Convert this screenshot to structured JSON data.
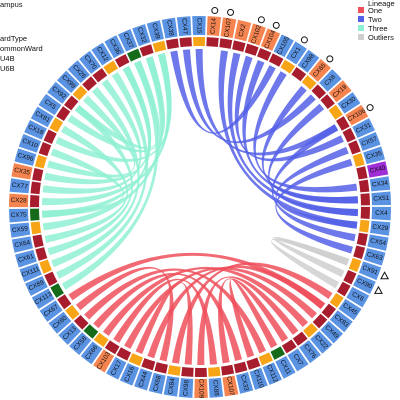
{
  "legend_left": {
    "lines": [
      "ampus",
      "ardType",
      "ommonWard",
      "U4B",
      "U6B"
    ]
  },
  "legend_right": {
    "title": "Lineage",
    "items": [
      {
        "label": "One",
        "color": "#ee4f5b"
      },
      {
        "label": "Two",
        "color": "#5560e8"
      },
      {
        "label": "Three",
        "color": "#8ff0d4"
      },
      {
        "label": "Outliers",
        "color": "#cfcfcf"
      }
    ]
  },
  "colors": {
    "label_blue": "#5b93e3",
    "label_orange": "#f58450",
    "label_purple": "#a02ed6",
    "ward_red": "#a71d2d",
    "ward_orange": "#f7a417",
    "ward_green": "#166b1b",
    "ribbon_one": "#ee4f5b",
    "ribbon_two": "#5560e8",
    "ribbon_three": "#8ff0d4",
    "ribbon_outlier": "#cfcfcf"
  },
  "segments": [
    {
      "label": "CX14",
      "color": "orange",
      "ward": "red",
      "marker": "circle"
    },
    {
      "label": "CX107",
      "color": "orange",
      "ward": "red",
      "marker": "circle"
    },
    {
      "label": "CX2",
      "color": "orange",
      "ward": "red",
      "marker": ""
    },
    {
      "label": "CX102",
      "color": "orange",
      "ward": "red",
      "marker": "circle"
    },
    {
      "label": "CX104",
      "color": "orange",
      "ward": "red",
      "marker": "circle"
    },
    {
      "label": "CX105",
      "color": "blue",
      "ward": "red",
      "marker": ""
    },
    {
      "label": "CX1",
      "color": "blue",
      "ward": "orange",
      "marker": "circle"
    },
    {
      "label": "CX98",
      "color": "blue",
      "ward": "red",
      "marker": ""
    },
    {
      "label": "CX65",
      "color": "orange",
      "ward": "orange",
      "marker": "circle"
    },
    {
      "label": "CX8",
      "color": "blue",
      "ward": "red",
      "marker": ""
    },
    {
      "label": "CX19",
      "color": "orange",
      "ward": "red",
      "marker": ""
    },
    {
      "label": "CX30",
      "color": "blue",
      "ward": "orange",
      "marker": ""
    },
    {
      "label": "CX106",
      "color": "orange",
      "ward": "red",
      "marker": "circle"
    },
    {
      "label": "CX31",
      "color": "blue",
      "ward": "red",
      "marker": ""
    },
    {
      "label": "CX57",
      "color": "blue",
      "ward": "red",
      "marker": ""
    },
    {
      "label": "CX35",
      "color": "blue",
      "ward": "orange",
      "marker": ""
    },
    {
      "label": "CX40",
      "color": "purple",
      "ward": "red",
      "marker": ""
    },
    {
      "label": "CX34",
      "color": "blue",
      "ward": "red",
      "marker": ""
    },
    {
      "label": "CX51",
      "color": "blue",
      "ward": "red",
      "marker": ""
    },
    {
      "label": "CX4",
      "color": "blue",
      "ward": "red",
      "marker": ""
    },
    {
      "label": "CX29",
      "color": "blue",
      "ward": "orange",
      "marker": ""
    },
    {
      "label": "CX54",
      "color": "blue",
      "ward": "red",
      "marker": ""
    },
    {
      "label": "CX63",
      "color": "blue",
      "ward": "red",
      "marker": ""
    },
    {
      "label": "CX91",
      "color": "blue",
      "ward": "orange",
      "marker": "triangle"
    },
    {
      "label": "CX90",
      "color": "blue",
      "ward": "red",
      "marker": "triangle"
    },
    {
      "label": "CX6",
      "color": "blue",
      "ward": "red",
      "marker": ""
    },
    {
      "label": "CX45",
      "color": "blue",
      "ward": "orange",
      "marker": ""
    },
    {
      "label": "CX83",
      "color": "blue",
      "ward": "red",
      "marker": ""
    },
    {
      "label": "CX49",
      "color": "blue",
      "ward": "red",
      "marker": ""
    },
    {
      "label": "CX22",
      "color": "blue",
      "ward": "orange",
      "marker": ""
    },
    {
      "label": "CX76",
      "color": "blue",
      "ward": "red",
      "marker": ""
    },
    {
      "label": "CX7",
      "color": "blue",
      "ward": "red",
      "marker": ""
    },
    {
      "label": "CX11",
      "color": "blue",
      "ward": "green",
      "marker": ""
    },
    {
      "label": "CX112",
      "color": "blue",
      "ward": "orange",
      "marker": ""
    },
    {
      "label": "CX110",
      "color": "blue",
      "ward": "red",
      "marker": ""
    },
    {
      "label": "CX33",
      "color": "blue",
      "ward": "red",
      "marker": ""
    },
    {
      "label": "CX107",
      "color": "orange",
      "ward": "red",
      "marker": ""
    },
    {
      "label": "CX88",
      "color": "blue",
      "ward": "orange",
      "marker": ""
    },
    {
      "label": "CX109",
      "color": "orange",
      "ward": "red",
      "marker": "circle"
    },
    {
      "label": "CX98",
      "color": "blue",
      "ward": "red",
      "marker": ""
    },
    {
      "label": "CX84",
      "color": "blue",
      "ward": "orange",
      "marker": ""
    },
    {
      "label": "CX68",
      "color": "blue",
      "ward": "red",
      "marker": ""
    },
    {
      "label": "CX44",
      "color": "blue",
      "ward": "red",
      "marker": ""
    },
    {
      "label": "CX16",
      "color": "blue",
      "ward": "orange",
      "marker": ""
    },
    {
      "label": "CX17",
      "color": "blue",
      "ward": "red",
      "marker": ""
    },
    {
      "label": "CX103",
      "color": "orange",
      "ward": "red",
      "marker": ""
    },
    {
      "label": "CX66",
      "color": "blue",
      "ward": "orange",
      "marker": ""
    },
    {
      "label": "CX58",
      "color": "blue",
      "ward": "green",
      "marker": ""
    },
    {
      "label": "CX13",
      "color": "blue",
      "ward": "red",
      "marker": ""
    },
    {
      "label": "CX60",
      "color": "blue",
      "ward": "orange",
      "marker": ""
    },
    {
      "label": "CX67",
      "color": "blue",
      "ward": "red",
      "marker": ""
    },
    {
      "label": "CX113",
      "color": "blue",
      "ward": "green",
      "marker": ""
    },
    {
      "label": "CX89",
      "color": "blue",
      "ward": "red",
      "marker": ""
    },
    {
      "label": "CX111",
      "color": "blue",
      "ward": "orange",
      "marker": ""
    },
    {
      "label": "CX61",
      "color": "blue",
      "ward": "red",
      "marker": ""
    },
    {
      "label": "CX64",
      "color": "blue",
      "ward": "red",
      "marker": ""
    },
    {
      "label": "CX59",
      "color": "blue",
      "ward": "orange",
      "marker": ""
    },
    {
      "label": "CX75",
      "color": "blue",
      "ward": "green",
      "marker": ""
    },
    {
      "label": "CX28",
      "color": "orange",
      "ward": "red",
      "marker": ""
    },
    {
      "label": "CX77",
      "color": "blue",
      "ward": "red",
      "marker": ""
    },
    {
      "label": "CX35",
      "color": "orange",
      "ward": "red",
      "marker": ""
    },
    {
      "label": "CX96",
      "color": "blue",
      "ward": "orange",
      "marker": ""
    },
    {
      "label": "CX10",
      "color": "blue",
      "ward": "red",
      "marker": ""
    },
    {
      "label": "CX18",
      "color": "blue",
      "ward": "red",
      "marker": ""
    },
    {
      "label": "CX81",
      "color": "blue",
      "ward": "orange",
      "marker": ""
    },
    {
      "label": "CX5",
      "color": "blue",
      "ward": "red",
      "marker": ""
    },
    {
      "label": "CX92",
      "color": "blue",
      "ward": "red",
      "marker": ""
    },
    {
      "label": "CX99",
      "color": "blue",
      "ward": "orange",
      "marker": ""
    },
    {
      "label": "CX26",
      "color": "blue",
      "ward": "red",
      "marker": ""
    },
    {
      "label": "CX70",
      "color": "blue",
      "ward": "red",
      "marker": ""
    },
    {
      "label": "CX12",
      "color": "blue",
      "ward": "orange",
      "marker": ""
    },
    {
      "label": "CX36",
      "color": "blue",
      "ward": "red",
      "marker": ""
    },
    {
      "label": "CX37",
      "color": "blue",
      "ward": "green",
      "marker": ""
    },
    {
      "label": "CX32",
      "color": "blue",
      "ward": "red",
      "marker": ""
    },
    {
      "label": "CX39",
      "color": "blue",
      "ward": "orange",
      "marker": ""
    },
    {
      "label": "CX38",
      "color": "blue",
      "ward": "red",
      "marker": ""
    },
    {
      "label": "CX47",
      "color": "blue",
      "ward": "red",
      "marker": ""
    },
    {
      "label": "CX15",
      "color": "blue",
      "ward": "orange",
      "marker": ""
    }
  ],
  "links": [
    {
      "lineage": "two",
      "from": 1,
      "to": 20
    },
    {
      "lineage": "two",
      "from": 2,
      "to": 19
    },
    {
      "lineage": "two",
      "from": 4,
      "to": 18
    },
    {
      "lineage": "two",
      "from": 6,
      "to": 17
    },
    {
      "lineage": "two",
      "from": 8,
      "to": 18
    },
    {
      "lineage": "two",
      "from": 10,
      "to": 19
    },
    {
      "lineage": "two",
      "from": 12,
      "to": 21
    },
    {
      "lineage": "two",
      "from": 14,
      "to": 20
    },
    {
      "lineage": "two",
      "from": 15,
      "to": 22
    },
    {
      "lineage": "two",
      "from": 77,
      "to": 12
    },
    {
      "lineage": "two",
      "from": 75,
      "to": 5
    },
    {
      "lineage": "two",
      "from": 76,
      "to": 9
    },
    {
      "lineage": "two",
      "from": 3,
      "to": 13
    },
    {
      "lineage": "outlier",
      "from": 23,
      "to": 24
    },
    {
      "lineage": "outlier",
      "from": 23,
      "to": 25
    },
    {
      "lineage": "one",
      "from": 26,
      "to": 40
    },
    {
      "lineage": "one",
      "from": 27,
      "to": 42
    },
    {
      "lineage": "one",
      "from": 28,
      "to": 44
    },
    {
      "lineage": "one",
      "from": 29,
      "to": 46
    },
    {
      "lineage": "one",
      "from": 30,
      "to": 38
    },
    {
      "lineage": "one",
      "from": 31,
      "to": 36
    },
    {
      "lineage": "one",
      "from": 32,
      "to": 34
    },
    {
      "lineage": "one",
      "from": 33,
      "to": 48
    },
    {
      "lineage": "one",
      "from": 35,
      "to": 47
    },
    {
      "lineage": "one",
      "from": 37,
      "to": 45
    },
    {
      "lineage": "one",
      "from": 39,
      "to": 43
    },
    {
      "lineage": "one",
      "from": 41,
      "to": 49
    },
    {
      "lineage": "one",
      "from": 27,
      "to": 50
    },
    {
      "lineage": "three",
      "from": 51,
      "to": 72
    },
    {
      "lineage": "three",
      "from": 52,
      "to": 70
    },
    {
      "lineage": "three",
      "from": 53,
      "to": 68
    },
    {
      "lineage": "three",
      "from": 54,
      "to": 66
    },
    {
      "lineage": "three",
      "from": 55,
      "to": 64
    },
    {
      "lineage": "three",
      "from": 56,
      "to": 73
    },
    {
      "lineage": "three",
      "from": 57,
      "to": 62
    },
    {
      "lineage": "three",
      "from": 58,
      "to": 74
    },
    {
      "lineage": "three",
      "from": 59,
      "to": 69
    },
    {
      "lineage": "three",
      "from": 60,
      "to": 71
    },
    {
      "lineage": "three",
      "from": 61,
      "to": 67
    },
    {
      "lineage": "three",
      "from": 63,
      "to": 74
    },
    {
      "lineage": "three",
      "from": 65,
      "to": 73
    },
    {
      "lineage": "three",
      "from": 66,
      "to": 72
    },
    {
      "lineage": "three",
      "from": 57,
      "to": 71
    }
  ]
}
